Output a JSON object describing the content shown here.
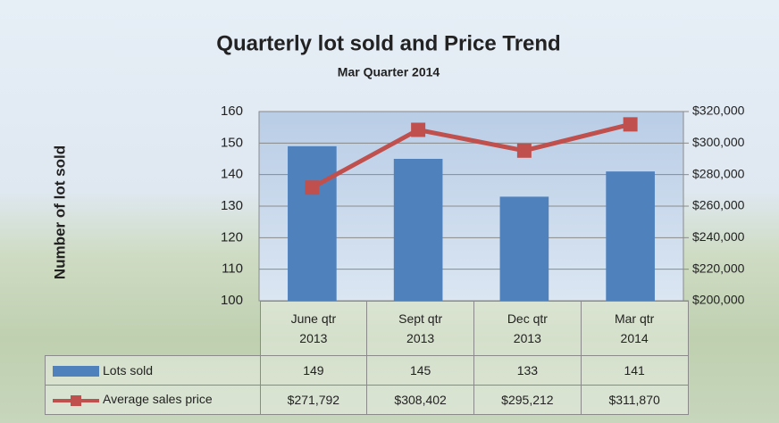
{
  "chart_data": {
    "type": "bar",
    "title": "Quarterly lot sold and Price Trend",
    "subtitle": "Mar Quarter 2014",
    "y_label": "Number of lot sold",
    "categories": [
      "June qtr 2013",
      "Sept qtr 2013",
      "Dec qtr 2013",
      "Mar qtr 2014"
    ],
    "series": [
      {
        "name": "Lots sold",
        "type": "bar",
        "color": "#4f81bd",
        "values": [
          149,
          145,
          133,
          141
        ]
      },
      {
        "name": "Average sales price",
        "type": "line",
        "axis": "y2",
        "color": "#c0504d",
        "values": [
          271792,
          308402,
          295212,
          311870
        ],
        "value_labels": [
          "$271,792",
          "$308,402",
          "$295,212",
          "$311,870"
        ]
      }
    ],
    "ylim": [
      100,
      160
    ],
    "yticks": [
      100,
      110,
      120,
      130,
      140,
      150,
      160
    ],
    "y2lim": [
      200000,
      320000
    ],
    "y2ticks": [
      {
        "value": 200000,
        "label": "$200,000"
      },
      {
        "value": 220000,
        "label": "$220,000"
      },
      {
        "value": 240000,
        "label": "$240,000"
      },
      {
        "value": 260000,
        "label": "$260,000"
      },
      {
        "value": 280000,
        "label": "$280,000"
      },
      {
        "value": 300000,
        "label": "$300,000"
      },
      {
        "value": 320000,
        "label": "$320,000"
      }
    ],
    "grid": true,
    "data_table": true
  }
}
